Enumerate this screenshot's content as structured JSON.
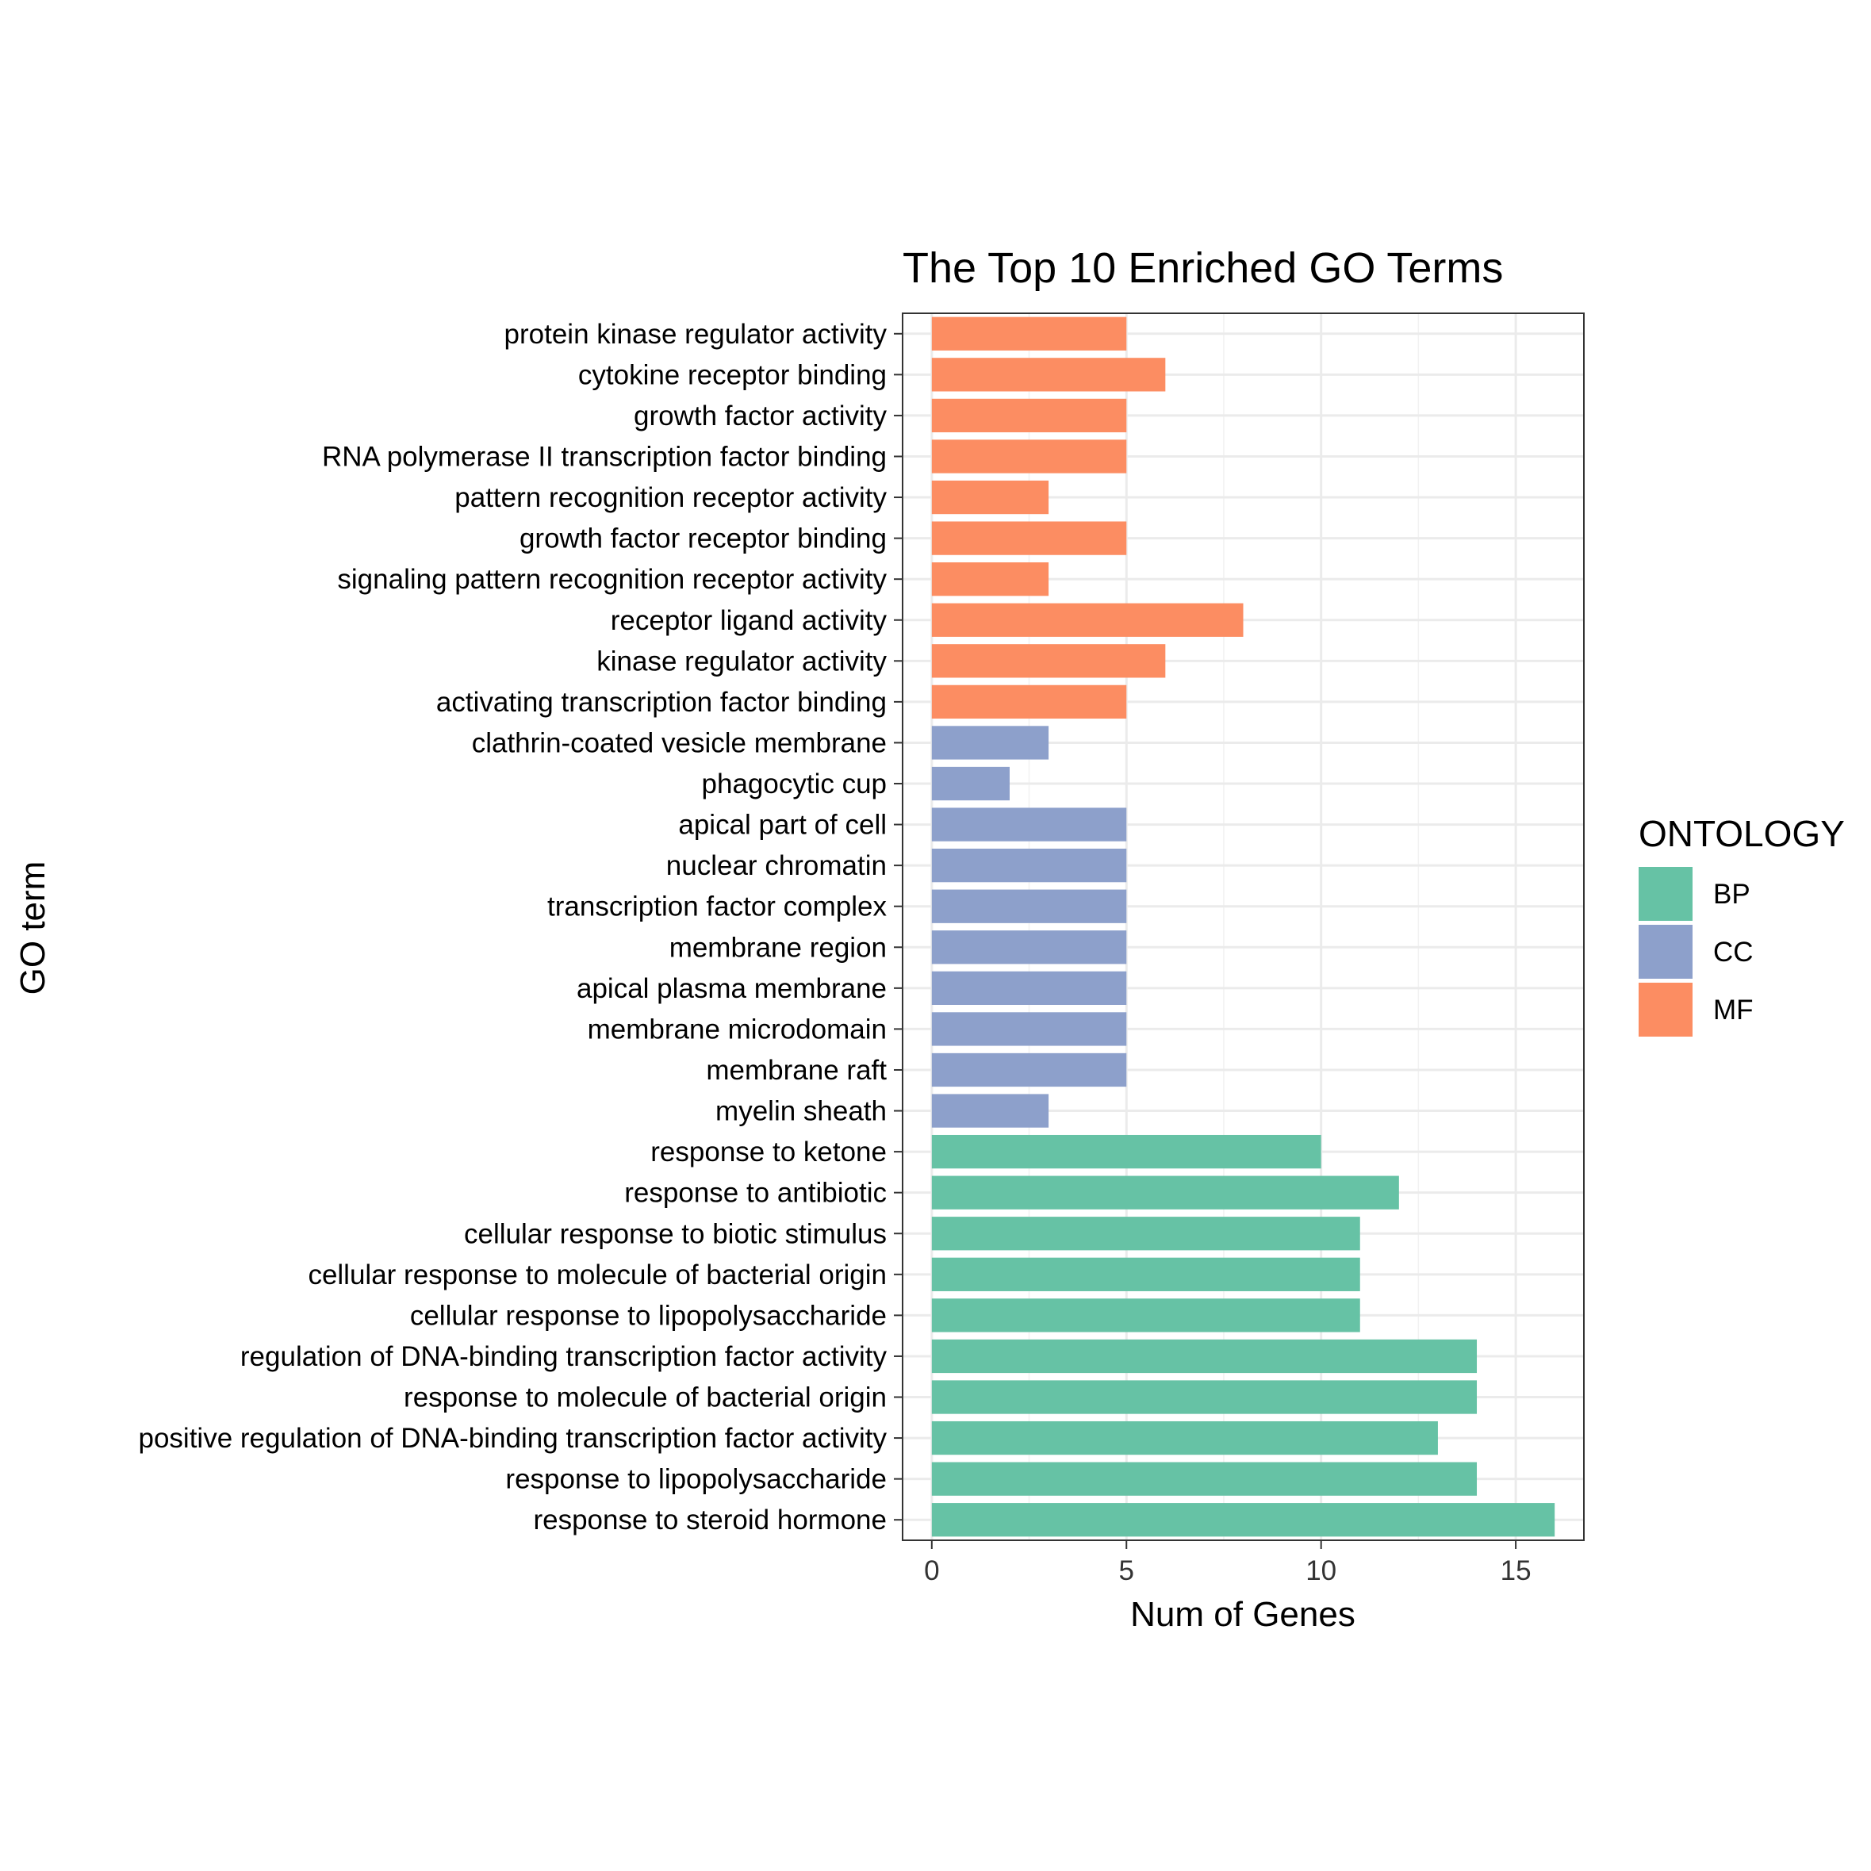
{
  "chart_data": {
    "type": "bar",
    "orientation": "horizontal",
    "title": "The Top 10 Enriched GO Terms",
    "xlabel": "Num of Genes",
    "ylabel": "GO term",
    "xlim": [
      -0.75,
      16.75
    ],
    "xticks": [
      "0",
      "5",
      "10",
      "15"
    ],
    "grid": true,
    "legend": {
      "title": "ONTOLOGY",
      "position": "right",
      "entries": [
        {
          "label": "BP",
          "color": "#66C2A5"
        },
        {
          "label": "CC",
          "color": "#8DA0CB"
        },
        {
          "label": "MF",
          "color": "#FC8D62"
        }
      ]
    },
    "bars": [
      {
        "term": "protein kinase regulator activity",
        "value": 5,
        "ontology": "MF"
      },
      {
        "term": "cytokine receptor binding",
        "value": 6,
        "ontology": "MF"
      },
      {
        "term": "growth factor activity",
        "value": 5,
        "ontology": "MF"
      },
      {
        "term": "RNA polymerase II transcription factor binding",
        "value": 5,
        "ontology": "MF"
      },
      {
        "term": "pattern recognition receptor activity",
        "value": 3,
        "ontology": "MF"
      },
      {
        "term": "growth factor receptor binding",
        "value": 5,
        "ontology": "MF"
      },
      {
        "term": "signaling pattern recognition receptor activity",
        "value": 3,
        "ontology": "MF"
      },
      {
        "term": "receptor ligand activity",
        "value": 8,
        "ontology": "MF"
      },
      {
        "term": "kinase regulator activity",
        "value": 6,
        "ontology": "MF"
      },
      {
        "term": "activating transcription factor binding",
        "value": 5,
        "ontology": "MF"
      },
      {
        "term": "clathrin-coated vesicle membrane",
        "value": 3,
        "ontology": "CC"
      },
      {
        "term": "phagocytic cup",
        "value": 2,
        "ontology": "CC"
      },
      {
        "term": "apical part of cell",
        "value": 5,
        "ontology": "CC"
      },
      {
        "term": "nuclear chromatin",
        "value": 5,
        "ontology": "CC"
      },
      {
        "term": "transcription factor complex",
        "value": 5,
        "ontology": "CC"
      },
      {
        "term": "membrane region",
        "value": 5,
        "ontology": "CC"
      },
      {
        "term": "apical plasma membrane",
        "value": 5,
        "ontology": "CC"
      },
      {
        "term": "membrane microdomain",
        "value": 5,
        "ontology": "CC"
      },
      {
        "term": "membrane raft",
        "value": 5,
        "ontology": "CC"
      },
      {
        "term": "myelin sheath",
        "value": 3,
        "ontology": "CC"
      },
      {
        "term": "response to ketone",
        "value": 10,
        "ontology": "BP"
      },
      {
        "term": "response to antibiotic",
        "value": 12,
        "ontology": "BP"
      },
      {
        "term": "cellular response to biotic stimulus",
        "value": 11,
        "ontology": "BP"
      },
      {
        "term": "cellular response to molecule of bacterial origin",
        "value": 11,
        "ontology": "BP"
      },
      {
        "term": "cellular response to lipopolysaccharide",
        "value": 11,
        "ontology": "BP"
      },
      {
        "term": "regulation of DNA-binding transcription factor activity",
        "value": 14,
        "ontology": "BP"
      },
      {
        "term": "response to molecule of bacterial origin",
        "value": 14,
        "ontology": "BP"
      },
      {
        "term": "positive regulation of DNA-binding transcription factor activity",
        "value": 13,
        "ontology": "BP"
      },
      {
        "term": "response to lipopolysaccharide",
        "value": 14,
        "ontology": "BP"
      },
      {
        "term": "response to steroid hormone",
        "value": 16,
        "ontology": "BP"
      }
    ]
  }
}
